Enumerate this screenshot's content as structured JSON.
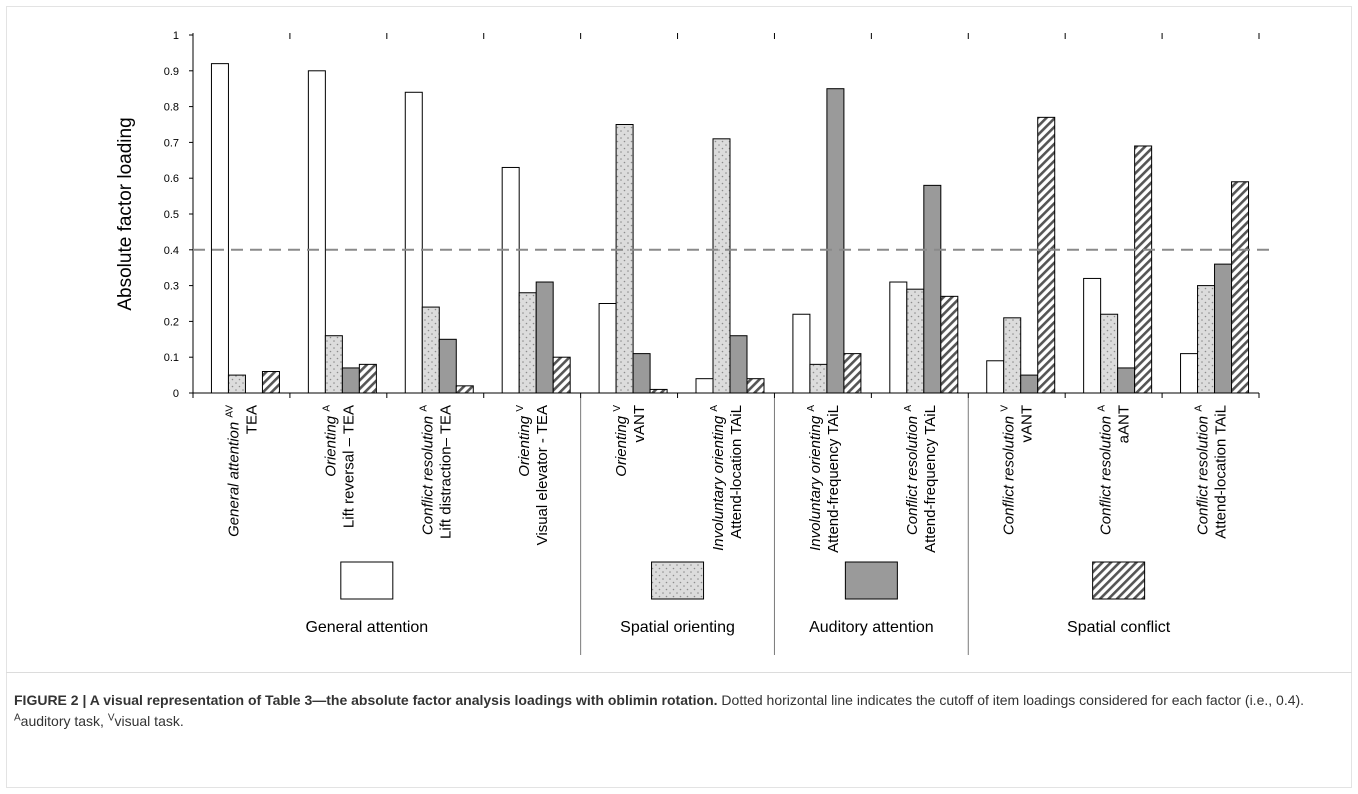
{
  "chart_data": {
    "type": "bar",
    "title": "",
    "xlabel": "",
    "ylabel": "Absolute factor loading",
    "ylim": [
      0,
      1
    ],
    "yticks": [
      "0",
      "0.1",
      "0.2",
      "0.3",
      "0.4",
      "0.5",
      "0.6",
      "0.7",
      "0.8",
      "0.9",
      "1"
    ],
    "cutoff": 0.4,
    "grid": false,
    "legend_position": "bottom",
    "categories": [
      {
        "measure": "General attention",
        "sup": "AV",
        "task": "TEA"
      },
      {
        "measure": "Orienting",
        "sup": "A",
        "task": "Lift reversal – TEA"
      },
      {
        "measure": "Conflict resolution",
        "sup": "A",
        "task": "Lift distraction– TEA"
      },
      {
        "measure": "Orienting",
        "sup": "V",
        "task": "Visual elevator - TEA"
      },
      {
        "measure": "Orienting",
        "sup": "V",
        "task": "vANT"
      },
      {
        "measure": "Involuntary orienting",
        "sup": "A",
        "task": "Attend-location TAiL"
      },
      {
        "measure": "Involuntary orienting",
        "sup": "A",
        "task": "Attend-frequency TAiL"
      },
      {
        "measure": "Conflict resolution",
        "sup": "A",
        "task": "Attend-frequency TAiL"
      },
      {
        "measure": "Conflict resolution",
        "sup": "V",
        "task": "vANT"
      },
      {
        "measure": "Conflict resolution",
        "sup": "A",
        "task": "aANT"
      },
      {
        "measure": "Conflict resolution",
        "sup": "A",
        "task": "Attend-location TAiL"
      }
    ],
    "series": [
      {
        "name": "General attention",
        "pattern": "white",
        "values": [
          0.92,
          0.9,
          0.84,
          0.63,
          0.25,
          0.04,
          0.22,
          0.31,
          0.09,
          0.32,
          0.11
        ]
      },
      {
        "name": "Spatial orienting",
        "pattern": "dotted",
        "values": [
          0.05,
          0.16,
          0.24,
          0.28,
          0.75,
          0.71,
          0.08,
          0.29,
          0.21,
          0.22,
          0.3
        ]
      },
      {
        "name": "Auditory attention",
        "pattern": "gray",
        "values": [
          0.0,
          0.07,
          0.15,
          0.31,
          0.11,
          0.16,
          0.85,
          0.58,
          0.05,
          0.07,
          0.36
        ]
      },
      {
        "name": "Spatial conflict",
        "pattern": "hatched",
        "values": [
          0.06,
          0.08,
          0.02,
          0.1,
          0.01,
          0.04,
          0.11,
          0.27,
          0.77,
          0.69,
          0.59
        ]
      }
    ],
    "group_boundaries_after": [
      4,
      6,
      8
    ],
    "colors": {
      "gray": "#9a9a9a",
      "dotted_bg": "#dcdcdc",
      "cutoff_line": "#8a8a8a",
      "caption": "#333333"
    }
  },
  "caption": {
    "figure": "FIGURE 2 |",
    "title": "A visual representation of Table 3—the absolute factor analysis loadings with oblimin rotation.",
    "text": "Dotted horizontal line indicates the cutoff of item loadings considered for each factor (i.e., 0.4).",
    "sup_a": "A",
    "auditory": "auditory task,",
    "sup_v": "V",
    "visual": "visual task."
  }
}
